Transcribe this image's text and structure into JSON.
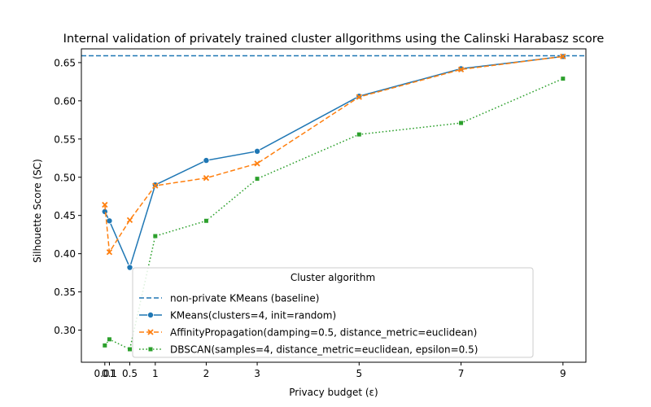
{
  "chart_data": {
    "type": "line",
    "title": "Internal validation of privately trained cluster allgorithms using the Calinski Harabasz score",
    "xlabel": "Privacy budget (ε)",
    "ylabel": "Silhouette Score (SC)",
    "xlim": [
      -0.45,
      9.45
    ],
    "ylim": [
      0.258,
      0.668
    ],
    "x_ticks": [
      0.01,
      0.1,
      0.5,
      1,
      2,
      3,
      5,
      7,
      9
    ],
    "x_tick_labels": [
      "0.01",
      "0.1",
      "0.5",
      "1",
      "2",
      "3",
      "5",
      "7",
      "9"
    ],
    "y_ticks": [
      0.3,
      0.35,
      0.4,
      0.45,
      0.5,
      0.55,
      0.6,
      0.65
    ],
    "y_tick_labels": [
      "0.30",
      "0.35",
      "0.40",
      "0.45",
      "0.50",
      "0.55",
      "0.60",
      "0.65"
    ],
    "grid": false,
    "legend": {
      "title": "Cluster algorithm",
      "placement": "lower-right"
    },
    "baseline": {
      "name": "non-private KMeans (baseline)",
      "value": 0.659,
      "color": "#1f77b4",
      "style": "dashed"
    },
    "series": [
      {
        "name": "KMeans(clusters=4, init=random)",
        "color": "#1f77b4",
        "style": "solid",
        "marker": "circle",
        "x": [
          0.01,
          0.1,
          0.5,
          1,
          2,
          3,
          5,
          7,
          9
        ],
        "y": [
          0.455,
          0.443,
          0.382,
          0.49,
          0.522,
          0.534,
          0.606,
          0.642,
          0.658
        ]
      },
      {
        "name": "AffinityPropagation(damping=0.5, distance_metric=euclidean)",
        "color": "#ff7f0e",
        "style": "dashed",
        "marker": "x",
        "x": [
          0.01,
          0.1,
          0.5,
          1,
          2,
          3,
          5,
          7,
          9
        ],
        "y": [
          0.464,
          0.402,
          0.444,
          0.489,
          0.499,
          0.518,
          0.605,
          0.641,
          0.658
        ]
      },
      {
        "name": "DBSCAN(samples=4, distance_metric=euclidean, epsilon=0.5)",
        "color": "#2ca02c",
        "style": "dotted",
        "marker": "square",
        "x": [
          0.01,
          0.1,
          0.5,
          1,
          2,
          3,
          5,
          7,
          9
        ],
        "y": [
          0.28,
          0.288,
          0.275,
          0.423,
          0.443,
          0.498,
          0.556,
          0.571,
          0.629
        ]
      }
    ]
  }
}
